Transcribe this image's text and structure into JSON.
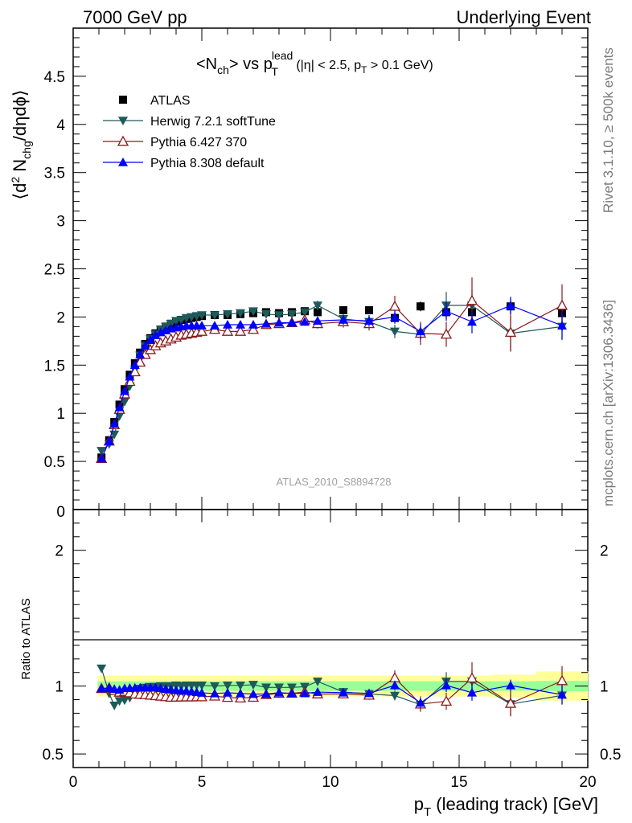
{
  "header": {
    "left": "7000 GeV pp",
    "right": "Underlying Event"
  },
  "side": {
    "upper": "Rivet 3.1.10, ≥ 500k events",
    "lower": "mcplots.cern.ch [arXiv:1306.3436]"
  },
  "main": {
    "title_main": "<N",
    "title_ch": "ch",
    "title_vs": "> vs p",
    "title_lead": "lead",
    "title_T": "T",
    "title_cuts": " (|η| < 2.5, p",
    "title_cuts_T": "T",
    "title_cuts_end": " > 0.1 GeV)",
    "ylabel_a": "⟨d",
    "ylabel_sup": "2",
    "ylabel_b": " N",
    "ylabel_sub": "chg",
    "ylabel_c": "/dηdϕ⟩",
    "watermark": "ATLAS_2010_S8894728",
    "ytick_labels": [
      "0.5",
      "1",
      "1.5",
      "2",
      "2.5",
      "3",
      "3.5",
      "4",
      "4.5"
    ],
    "ytick_bottom": "0"
  },
  "ratio": {
    "ylabel": "Ratio to ATLAS",
    "ytick_labels": [
      "0.5",
      "1",
      "2"
    ],
    "xtick_labels": [
      "0",
      "5",
      "10",
      "15",
      "20"
    ],
    "xlabel_a": "p",
    "xlabel_sub": "T",
    "xlabel_b": " (leading track) [GeV]"
  },
  "chart_data": {
    "type": "scatter",
    "xlim": [
      0,
      20
    ],
    "ylim": [
      0,
      5
    ],
    "ratio_ylim": [
      0.4,
      2.3
    ],
    "legend_placement": "top-left",
    "x": [
      1.1,
      1.4,
      1.6,
      1.8,
      2.0,
      2.2,
      2.4,
      2.6,
      2.8,
      3.0,
      3.2,
      3.4,
      3.6,
      3.8,
      4.0,
      4.2,
      4.4,
      4.6,
      4.8,
      5.0,
      5.5,
      6.0,
      6.5,
      7.0,
      7.5,
      8.0,
      8.5,
      9.0,
      9.5,
      10.5,
      11.5,
      12.5,
      13.5,
      14.5,
      15.5,
      17.0,
      19.0
    ],
    "series": [
      {
        "name": "ATLAS",
        "color": "#000000",
        "marker": "square",
        "values": [
          0.54,
          0.72,
          0.91,
          1.09,
          1.25,
          1.4,
          1.52,
          1.63,
          1.72,
          1.78,
          1.83,
          1.87,
          1.9,
          1.93,
          1.95,
          1.97,
          1.98,
          1.99,
          2.0,
          2.01,
          2.02,
          2.02,
          2.03,
          2.04,
          2.05,
          2.04,
          2.05,
          2.06,
          2.05,
          2.07,
          2.07,
          1.99,
          2.11,
          2.05,
          2.05,
          2.11,
          2.04
        ],
        "errors": [
          0.01,
          0.01,
          0.01,
          0.01,
          0.01,
          0.01,
          0.01,
          0.01,
          0.01,
          0.01,
          0.01,
          0.01,
          0.01,
          0.01,
          0.01,
          0.01,
          0.01,
          0.01,
          0.01,
          0.01,
          0.01,
          0.01,
          0.01,
          0.01,
          0.01,
          0.02,
          0.02,
          0.02,
          0.02,
          0.03,
          0.03,
          0.04,
          0.05,
          0.06,
          0.07,
          0.08,
          0.1
        ]
      },
      {
        "name": "Herwig 7.2.1 softTune",
        "color": "#1e5a5a",
        "marker": "triangle-down",
        "values": [
          0.61,
          0.68,
          0.78,
          0.97,
          1.12,
          1.28,
          1.45,
          1.6,
          1.7,
          1.77,
          1.82,
          1.87,
          1.9,
          1.93,
          1.96,
          1.97,
          1.99,
          2.0,
          2.01,
          2.02,
          2.02,
          2.03,
          2.04,
          2.06,
          2.03,
          2.02,
          2.03,
          2.05,
          2.12,
          1.98,
          1.95,
          1.85,
          1.82,
          2.12,
          2.12,
          1.83,
          1.9
        ],
        "errors": [
          0.01,
          0.01,
          0.01,
          0.01,
          0.01,
          0.01,
          0.01,
          0.01,
          0.01,
          0.01,
          0.01,
          0.01,
          0.01,
          0.01,
          0.01,
          0.01,
          0.01,
          0.01,
          0.01,
          0.01,
          0.01,
          0.02,
          0.02,
          0.02,
          0.02,
          0.03,
          0.03,
          0.04,
          0.05,
          0.05,
          0.06,
          0.07,
          0.08,
          0.14,
          0.16,
          0.18,
          0.14
        ]
      },
      {
        "name": "Pythia 6.427 370",
        "color": "#8b1a1a",
        "marker": "triangle-up-open",
        "values": [
          0.53,
          0.71,
          0.88,
          1.04,
          1.2,
          1.33,
          1.43,
          1.53,
          1.61,
          1.66,
          1.7,
          1.73,
          1.75,
          1.77,
          1.79,
          1.81,
          1.82,
          1.83,
          1.84,
          1.85,
          1.87,
          1.85,
          1.85,
          1.87,
          1.92,
          1.93,
          1.94,
          1.97,
          1.93,
          1.95,
          1.93,
          2.11,
          1.83,
          1.82,
          2.17,
          1.84,
          2.12
        ],
        "errors": [
          0.01,
          0.01,
          0.01,
          0.01,
          0.01,
          0.01,
          0.01,
          0.01,
          0.01,
          0.01,
          0.01,
          0.01,
          0.01,
          0.01,
          0.01,
          0.01,
          0.01,
          0.01,
          0.01,
          0.02,
          0.02,
          0.02,
          0.02,
          0.03,
          0.03,
          0.03,
          0.04,
          0.04,
          0.05,
          0.06,
          0.07,
          0.11,
          0.12,
          0.13,
          0.24,
          0.2,
          0.22
        ]
      },
      {
        "name": "Pythia 8.308 default",
        "color": "#0000ff",
        "marker": "triangle-up",
        "values": [
          0.53,
          0.71,
          0.89,
          1.06,
          1.23,
          1.38,
          1.5,
          1.61,
          1.7,
          1.76,
          1.81,
          1.84,
          1.86,
          1.88,
          1.89,
          1.9,
          1.91,
          1.91,
          1.91,
          1.91,
          1.91,
          1.92,
          1.92,
          1.92,
          1.93,
          1.94,
          1.94,
          1.95,
          1.96,
          1.97,
          1.96,
          2.0,
          1.85,
          2.06,
          1.95,
          2.12,
          1.91
        ],
        "errors": [
          0.01,
          0.01,
          0.01,
          0.01,
          0.01,
          0.01,
          0.01,
          0.01,
          0.01,
          0.01,
          0.01,
          0.01,
          0.01,
          0.01,
          0.01,
          0.01,
          0.01,
          0.01,
          0.01,
          0.01,
          0.02,
          0.02,
          0.02,
          0.02,
          0.02,
          0.03,
          0.03,
          0.04,
          0.04,
          0.05,
          0.06,
          0.07,
          0.08,
          0.1,
          0.12,
          0.09,
          0.14
        ]
      }
    ]
  }
}
